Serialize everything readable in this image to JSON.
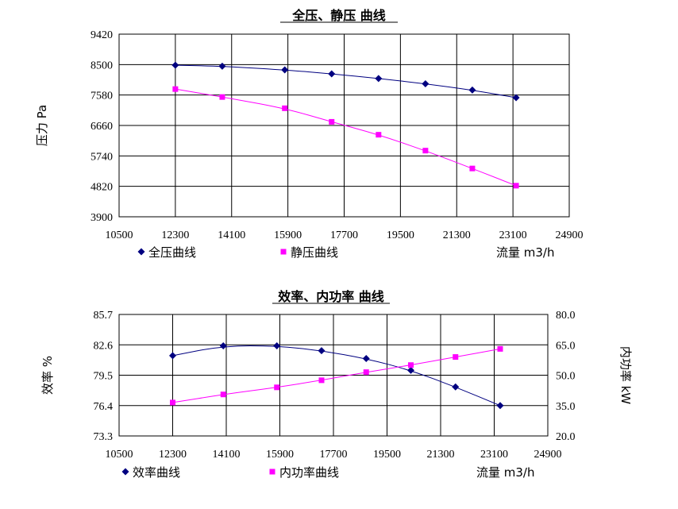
{
  "chart_data": [
    {
      "type": "line",
      "title": "全压、静压 曲线",
      "xlabel": "流量 m3/h",
      "ylabel": "压力 Pa",
      "xlim": [
        10500,
        24900
      ],
      "ylim": [
        3900,
        9420
      ],
      "x_ticks": [
        "10500",
        "12300",
        "14100",
        "15900",
        "17700",
        "19500",
        "21300",
        "23100",
        "24900"
      ],
      "y_ticks": [
        "3900",
        "4820",
        "5740",
        "6660",
        "7580",
        "8500",
        "9420"
      ],
      "grid": true,
      "legend": "bottom",
      "series": [
        {
          "name": "全压曲线",
          "color": "#000080",
          "marker": "diamond",
          "x": [
            12300,
            13800,
            15800,
            17300,
            18800,
            20300,
            21800,
            23200
          ],
          "y": [
            8480,
            8450,
            8340,
            8220,
            8080,
            7920,
            7730,
            7500
          ]
        },
        {
          "name": "静压曲线",
          "color": "#ff00ff",
          "marker": "square",
          "x": [
            12300,
            13800,
            15800,
            17300,
            18800,
            20300,
            21800,
            23200
          ],
          "y": [
            7760,
            7520,
            7180,
            6770,
            6380,
            5900,
            5360,
            4840
          ]
        }
      ]
    },
    {
      "type": "line",
      "title": "效率、内功率 曲线",
      "xlabel": "流量 m3/h",
      "ylabel": "效率 %",
      "y2label": "内功率 kW",
      "xlim": [
        10500,
        24900
      ],
      "ylim": [
        73.3,
        85.7
      ],
      "y2lim": [
        20.0,
        80.0
      ],
      "x_ticks": [
        "10500",
        "12300",
        "14100",
        "15900",
        "17700",
        "19500",
        "21300",
        "23100",
        "24900"
      ],
      "y_ticks": [
        "73.3",
        "76.4",
        "79.5",
        "82.6",
        "85.7"
      ],
      "y2_ticks": [
        "20.0",
        "35.0",
        "50.0",
        "65.0",
        "80.0"
      ],
      "grid": true,
      "legend": "bottom",
      "series": [
        {
          "name": "效率曲线",
          "axis": "left",
          "color": "#000080",
          "marker": "diamond",
          "x": [
            12300,
            14000,
            15800,
            17300,
            18800,
            20300,
            21800,
            23300
          ],
          "y": [
            81.5,
            82.5,
            82.5,
            82.0,
            81.2,
            80.0,
            78.3,
            76.4
          ]
        },
        {
          "name": "内功率曲线",
          "axis": "right",
          "color": "#ff00ff",
          "marker": "square",
          "x": [
            12300,
            14000,
            15800,
            17300,
            18800,
            20300,
            21800,
            23300
          ],
          "y": [
            36.5,
            40.5,
            44.0,
            47.5,
            51.5,
            55.0,
            59.0,
            63.0
          ]
        }
      ]
    }
  ]
}
